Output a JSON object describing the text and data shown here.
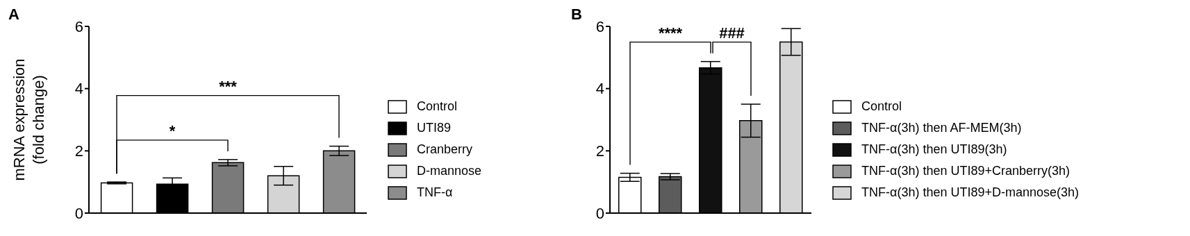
{
  "chart_data": [
    {
      "type": "bar",
      "title": "A",
      "ylabel": "mRNA expression\n(fold change)",
      "categories": [
        null,
        null,
        null,
        null,
        null
      ],
      "series": [
        {
          "name": "Control",
          "color": "#ffffff",
          "values": [
            0.97,
            null,
            null,
            null,
            null
          ],
          "errors": [
            0.03,
            null,
            null,
            null,
            null
          ]
        },
        {
          "name": "UTI89",
          "color": "#000000",
          "values": [
            null,
            0.93,
            null,
            null,
            null
          ],
          "errors": [
            null,
            0.2,
            null,
            null,
            null
          ]
        },
        {
          "name": "Cranberry",
          "color": "#7a7a7a",
          "values": [
            null,
            null,
            1.62,
            null,
            null
          ],
          "errors": [
            null,
            null,
            0.1,
            null,
            null
          ]
        },
        {
          "name": "D-mannose",
          "color": "#d4d4d4",
          "values": [
            null,
            null,
            null,
            1.2,
            null
          ],
          "errors": [
            null,
            null,
            null,
            0.3,
            null
          ]
        },
        {
          "name": "TNF-α",
          "color": "#8c8c8c",
          "values": [
            null,
            null,
            null,
            null,
            2.0
          ],
          "errors": [
            null,
            null,
            null,
            null,
            0.15
          ]
        }
      ],
      "ylim": [
        0,
        6
      ],
      "yticks": [
        0,
        2,
        4,
        6
      ],
      "tick_labels": "y",
      "legend": "right",
      "annotations": [
        "*",
        "***"
      ]
    },
    {
      "type": "bar",
      "title": "B",
      "categories": [
        null,
        null,
        null,
        null,
        null
      ],
      "series": [
        {
          "name": "Control",
          "color": "#ffffff",
          "values": [
            1.15,
            null,
            null,
            null,
            null
          ],
          "errors": [
            0.13,
            null,
            null,
            null,
            null
          ]
        },
        {
          "name": "TNF-α(3h) then AF-MEM(3h)",
          "color": "#5c5c5c",
          "values": [
            null,
            1.17,
            null,
            null,
            null
          ],
          "errors": [
            null,
            0.1,
            null,
            null,
            null
          ]
        },
        {
          "name": "TNF-α(3h) then UTI89(3h)",
          "color": "#111111",
          "values": [
            null,
            null,
            4.67,
            null,
            null
          ],
          "errors": [
            null,
            null,
            0.2,
            null,
            null
          ]
        },
        {
          "name": "TNF-α(3h) then UTI89+Cranberry(3h)",
          "color": "#9a9a9a",
          "values": [
            null,
            null,
            null,
            2.97,
            null
          ],
          "errors": [
            null,
            null,
            null,
            0.53,
            null
          ]
        },
        {
          "name": "TNF-α(3h) then UTI89+D-mannose(3h)",
          "color": "#d6d6d6",
          "values": [
            null,
            null,
            null,
            null,
            5.5
          ],
          "errors": [
            null,
            null,
            null,
            null,
            0.43
          ]
        }
      ],
      "ylim": [
        0,
        6
      ],
      "yticks": [
        0,
        2,
        4,
        6
      ],
      "tick_labels": "y",
      "legend": "right",
      "annotations": [
        "****",
        "###"
      ]
    }
  ]
}
